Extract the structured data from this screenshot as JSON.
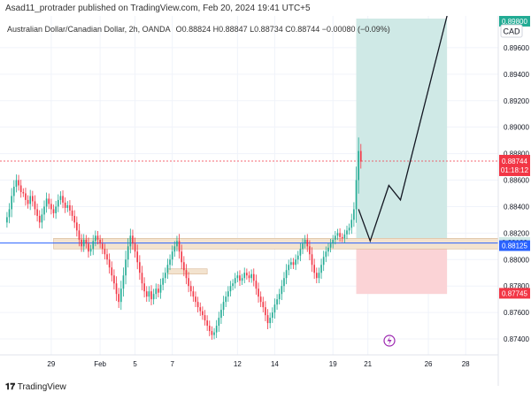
{
  "header": {
    "published": "Asad11_protrader published on TradingView.com, Feb 20, 2024 19:41 UTC+5",
    "instrument": "Australian Dollar/Canadian Dollar, 2h, OANDA",
    "ohlc": "O0.88824 H0.88847 L0.88734 C0.88744 −0.00080 (−0.09%)"
  },
  "footer": {
    "brand": "TradingView"
  },
  "chart_data": {
    "type": "candlestick",
    "title": "Australian Dollar/Canadian Dollar, 2h, OANDA",
    "currency_label": "CAD",
    "y_range": [
      0.8728,
      0.8984
    ],
    "y_ticks": [
      0.874,
      0.876,
      0.878,
      0.88,
      0.882,
      0.884,
      0.886,
      0.888,
      0.89,
      0.892,
      0.894,
      0.896
    ],
    "y_tick_labels": [
      "0.87400",
      "0.87600",
      "0.87800",
      "0.88000",
      "0.88200",
      "0.88400",
      "0.88600",
      "0.88800",
      "0.89000",
      "0.89200",
      "0.89400",
      "0.89600"
    ],
    "x_ticks": [
      {
        "label": "29",
        "idx": 19
      },
      {
        "label": "Feb",
        "idx": 40
      },
      {
        "label": "5",
        "idx": 55
      },
      {
        "label": "7",
        "idx": 71
      },
      {
        "label": "12",
        "idx": 99
      },
      {
        "label": "14",
        "idx": 115
      },
      {
        "label": "19",
        "idx": 140
      },
      {
        "label": "21",
        "idx": 155
      },
      {
        "label": "26",
        "idx": 181
      },
      {
        "label": "28",
        "idx": 197
      }
    ],
    "x_domain": [
      -3,
      211
    ],
    "closes": [
      0.8832,
      0.8838,
      0.8848,
      0.8855,
      0.886,
      0.8856,
      0.8851,
      0.885,
      0.8845,
      0.8842,
      0.8848,
      0.8844,
      0.8838,
      0.8833,
      0.8828,
      0.8834,
      0.884,
      0.8846,
      0.8842,
      0.8838,
      0.8835,
      0.884,
      0.8845,
      0.8848,
      0.8843,
      0.8839,
      0.8841,
      0.8837,
      0.8833,
      0.8828,
      0.8822,
      0.8815,
      0.881,
      0.8815,
      0.8812,
      0.8806,
      0.8808,
      0.8814,
      0.8818,
      0.8815,
      0.8812,
      0.8808,
      0.8804,
      0.88,
      0.8794,
      0.8788,
      0.8782,
      0.8774,
      0.8768,
      0.8778,
      0.8788,
      0.88,
      0.881,
      0.8818,
      0.8812,
      0.8806,
      0.8798,
      0.879,
      0.8782,
      0.8776,
      0.8772,
      0.8776,
      0.877,
      0.8774,
      0.8778,
      0.8775,
      0.8781,
      0.8786,
      0.879,
      0.8796,
      0.88,
      0.8806,
      0.881,
      0.8814,
      0.8806,
      0.8798,
      0.8792,
      0.8786,
      0.878,
      0.8776,
      0.8772,
      0.8768,
      0.8764,
      0.8761,
      0.8758,
      0.8754,
      0.875,
      0.8746,
      0.8743,
      0.8745,
      0.875,
      0.8756,
      0.8762,
      0.8768,
      0.8772,
      0.8776,
      0.878,
      0.8782,
      0.8786,
      0.8788,
      0.8784,
      0.8786,
      0.879,
      0.8788,
      0.8786,
      0.8789,
      0.8784,
      0.8778,
      0.8772,
      0.8768,
      0.8764,
      0.8758,
      0.8752,
      0.8756,
      0.876,
      0.8766,
      0.877,
      0.8774,
      0.878,
      0.8786,
      0.8792,
      0.8796,
      0.8798,
      0.8796,
      0.88,
      0.8803,
      0.8808,
      0.8812,
      0.8815,
      0.881,
      0.8804,
      0.8796,
      0.879,
      0.8786,
      0.879,
      0.8796,
      0.8802,
      0.8806,
      0.8809,
      0.8812,
      0.8815,
      0.8818,
      0.882,
      0.8817,
      0.8816,
      0.8819,
      0.8822,
      0.8824,
      0.883,
      0.8838,
      0.886,
      0.8882,
      0.8874
    ],
    "current_price": {
      "value": 0.88744,
      "label": "0.88744",
      "countdown": "01:18:12"
    },
    "levels": [
      {
        "value": 0.88129,
        "label": "0.88129",
        "color": "#cfe9e6"
      },
      {
        "value": 0.88125,
        "label": "0.88125",
        "color": "#2962ff"
      },
      {
        "value": 0.87745,
        "label": "0.87745",
        "color": "#f23645"
      },
      {
        "value": 0.898,
        "label": "0.89800",
        "color": "#22ab94"
      }
    ],
    "support_zone": [
      0.8808,
      0.8816
    ],
    "small_zone": [
      0.8789,
      0.8793
    ],
    "target_zone": [
      0.8813,
      0.8982
    ],
    "stop_zone": [
      0.8774,
      0.8813
    ],
    "projection_path": [
      {
        "idx": 151,
        "price": 0.8838
      },
      {
        "idx": 156,
        "price": 0.8814
      },
      {
        "idx": 164,
        "price": 0.8856
      },
      {
        "idx": 169,
        "price": 0.8845
      },
      {
        "idx": 189,
        "price": 0.8984
      }
    ],
    "colors": {
      "up": "#22ab94",
      "down": "#f23645",
      "grid": "#f0f3fa",
      "target": "#cfe9e6",
      "stop": "#fbd3d6"
    }
  }
}
